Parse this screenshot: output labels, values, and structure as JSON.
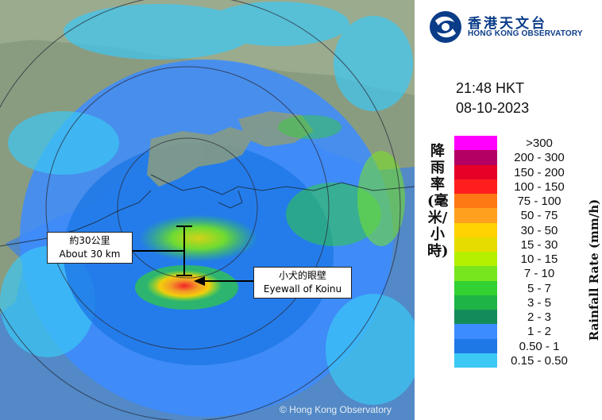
{
  "logo": {
    "name_zh": "香港天文台",
    "name_en": "HONG KONG OBSERVATORY"
  },
  "timestamp": {
    "time": "21:48 HKT",
    "date": "08-10-2023"
  },
  "legend": {
    "axis_label_zh": "降雨率(毫米/小時)",
    "axis_label_en": "Rainfall Rate (mm/h)",
    "classes": [
      {
        "label": ">300",
        "color": "#ff00ff"
      },
      {
        "label": "200 - 300",
        "color": "#b40064"
      },
      {
        "label": "150 - 200",
        "color": "#e60028"
      },
      {
        "label": "100 - 150",
        "color": "#ff1e1e"
      },
      {
        "label": "75 - 100",
        "color": "#ff7814"
      },
      {
        "label": "50 - 75",
        "color": "#ffa01e"
      },
      {
        "label": "30 - 50",
        "color": "#ffd200"
      },
      {
        "label": "15 - 30",
        "color": "#e6dc00"
      },
      {
        "label": "10 - 15",
        "color": "#b4f000"
      },
      {
        "label": "7 - 10",
        "color": "#78e61e"
      },
      {
        "label": "5 - 7",
        "color": "#32d232"
      },
      {
        "label": "3 - 5",
        "color": "#1eb446"
      },
      {
        "label": "2 - 3",
        "color": "#148c5a"
      },
      {
        "label": "1 - 2",
        "color": "#3c8cff"
      },
      {
        "label": "0.50 - 1",
        "color": "#1e78e6"
      },
      {
        "label": "0.15 - 0.50",
        "color": "#3cc8f5"
      }
    ]
  },
  "annotations": {
    "distance": {
      "zh": "約30公里",
      "en": "About 30 km"
    },
    "eyewall": {
      "zh": "小犬的眼壁",
      "en": "Eyewall of Koinu"
    }
  },
  "credit": "© Hong Kong Observatory",
  "colors": {
    "sea": "#4f86c4",
    "land": "#8a9c80",
    "observatory_blue": "#0a3c88"
  }
}
